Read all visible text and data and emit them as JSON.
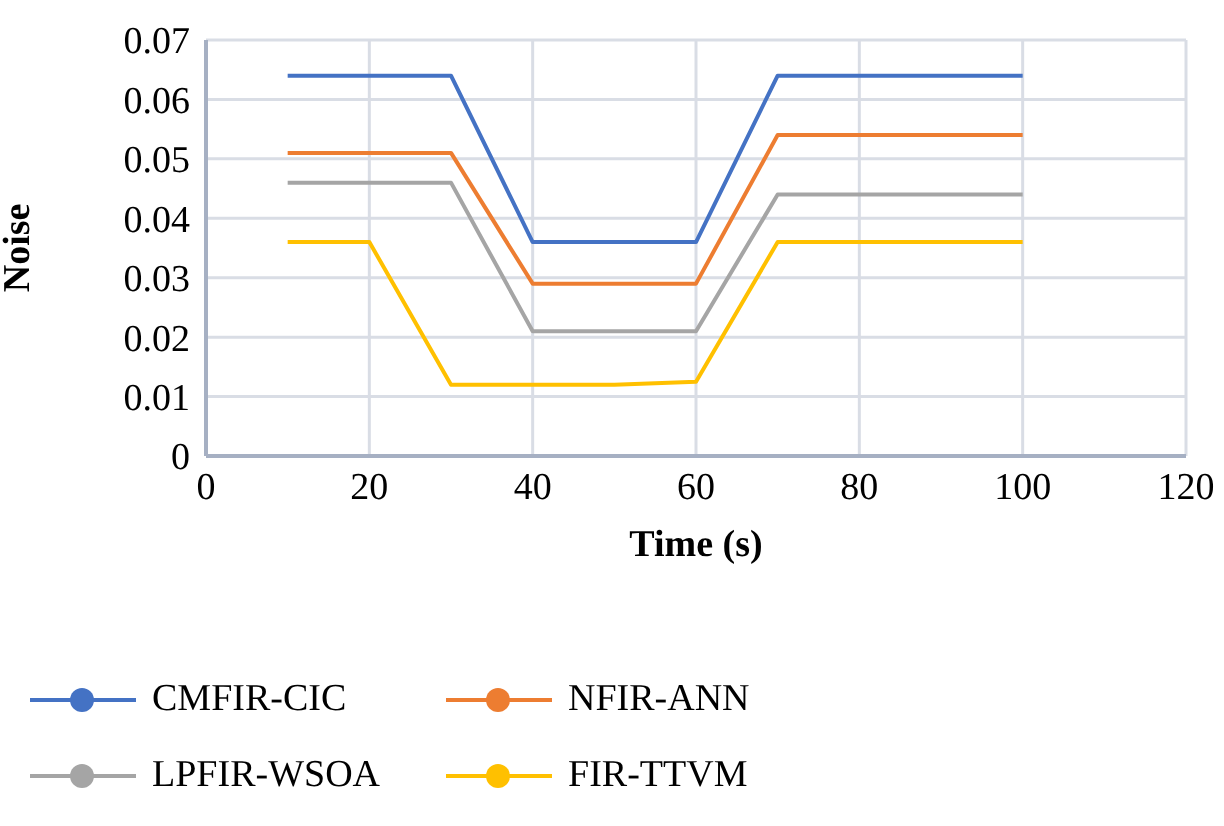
{
  "chart_data": {
    "type": "line",
    "xlabel": "Time (s)",
    "ylabel": "Noise",
    "x": [
      10,
      20,
      30,
      40,
      50,
      60,
      70,
      80,
      90,
      100
    ],
    "series": [
      {
        "name": "CMFIR-CIC",
        "color": "#4472c4",
        "values": [
          0.064,
          0.064,
          0.064,
          0.036,
          0.036,
          0.036,
          0.064,
          0.064,
          0.064,
          0.064
        ]
      },
      {
        "name": "NFIR-ANN",
        "color": "#ed7d31",
        "values": [
          0.051,
          0.051,
          0.051,
          0.029,
          0.029,
          0.029,
          0.054,
          0.054,
          0.054,
          0.054
        ]
      },
      {
        "name": "LPFIR-WSOA",
        "color": "#a5a5a5",
        "values": [
          0.046,
          0.046,
          0.046,
          0.021,
          0.021,
          0.021,
          0.044,
          0.044,
          0.044,
          0.044
        ]
      },
      {
        "name": "FIR-TTVM",
        "color": "#ffc000",
        "values": [
          0.036,
          0.036,
          0.012,
          0.012,
          0.012,
          0.0125,
          0.036,
          0.036,
          0.036,
          0.036
        ]
      }
    ],
    "xlim": [
      0,
      120
    ],
    "xticks": [
      0,
      20,
      40,
      60,
      80,
      100,
      120
    ],
    "ylim": [
      0,
      0.07
    ],
    "yticks": [
      0,
      0.01,
      0.02,
      0.03,
      0.04,
      0.05,
      0.06,
      0.07
    ],
    "grid": true,
    "legend": "bottom",
    "marker": "none",
    "line_style": "solid"
  }
}
